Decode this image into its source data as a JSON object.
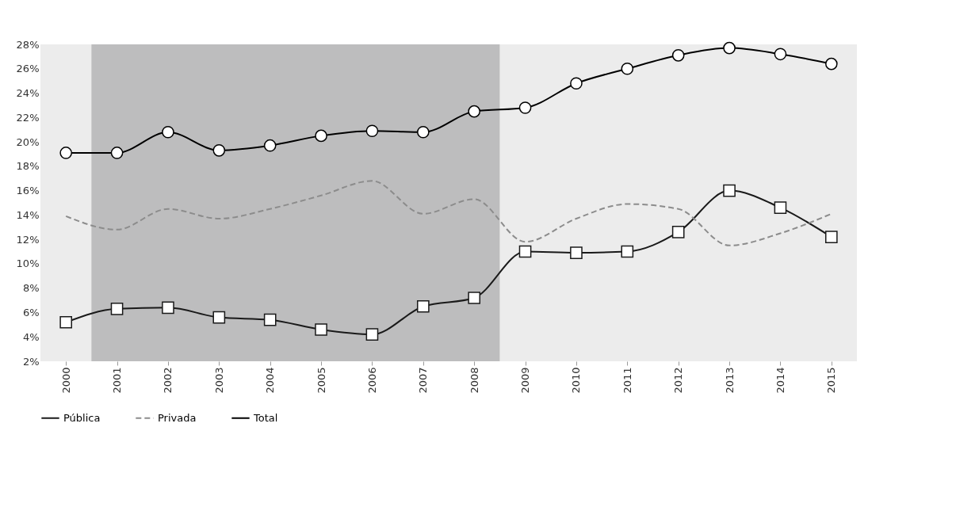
{
  "chart_data": {
    "type": "line",
    "x": [
      2000,
      2001,
      2002,
      2003,
      2004,
      2005,
      2006,
      2007,
      2008,
      2009,
      2010,
      2011,
      2012,
      2013,
      2014,
      2015
    ],
    "xlim": [
      1999.5,
      2015.5
    ],
    "xticks": [
      2000,
      2001,
      2002,
      2003,
      2004,
      2005,
      2006,
      2007,
      2008,
      2009,
      2010,
      2011,
      2012,
      2013,
      2014,
      2015
    ],
    "ylim": [
      2,
      28
    ],
    "yticks": [
      {
        "value": 2,
        "label": "2%"
      },
      {
        "value": 4,
        "label": "4%"
      },
      {
        "value": 6,
        "label": "6%"
      },
      {
        "value": 8,
        "label": "8%"
      },
      {
        "value": 10,
        "label": "10%"
      },
      {
        "value": 12,
        "label": "12%"
      },
      {
        "value": 14,
        "label": "14%"
      },
      {
        "value": 16,
        "label": "16%"
      },
      {
        "value": 18,
        "label": "18%"
      },
      {
        "value": 20,
        "label": "20%"
      },
      {
        "value": 22,
        "label": "22%"
      },
      {
        "value": 24,
        "label": "24%"
      },
      {
        "value": 26,
        "label": "26%"
      },
      {
        "value": 28,
        "label": "28%"
      }
    ],
    "series": [
      {
        "name": "Pública",
        "color": "#1a1a1a",
        "marker": "square",
        "line_style": "solid",
        "values": [
          5.2,
          6.3,
          6.4,
          5.6,
          5.4,
          4.6,
          4.2,
          6.5,
          7.2,
          11.0,
          10.9,
          11.0,
          12.6,
          16.0,
          14.6,
          12.2
        ]
      },
      {
        "name": "Privada",
        "color": "#8c8c8c",
        "marker": "none",
        "line_style": "dashed",
        "values": [
          13.9,
          12.8,
          14.5,
          13.7,
          14.5,
          15.6,
          16.8,
          14.1,
          15.3,
          11.8,
          13.7,
          14.9,
          14.5,
          11.5,
          12.5,
          14.1
        ]
      },
      {
        "name": "Total",
        "color": "#000000",
        "marker": "circle",
        "line_style": "solid",
        "values": [
          19.1,
          19.1,
          20.8,
          19.3,
          19.7,
          20.5,
          20.9,
          20.8,
          22.5,
          22.8,
          24.8,
          26.0,
          27.1,
          27.7,
          27.2,
          26.4
        ]
      }
    ],
    "bands": [
      {
        "axis": "x",
        "from": 2000.5,
        "to": 2008.5,
        "color": "#bdbdbe"
      }
    ],
    "grid": false,
    "legend": "bottom"
  }
}
